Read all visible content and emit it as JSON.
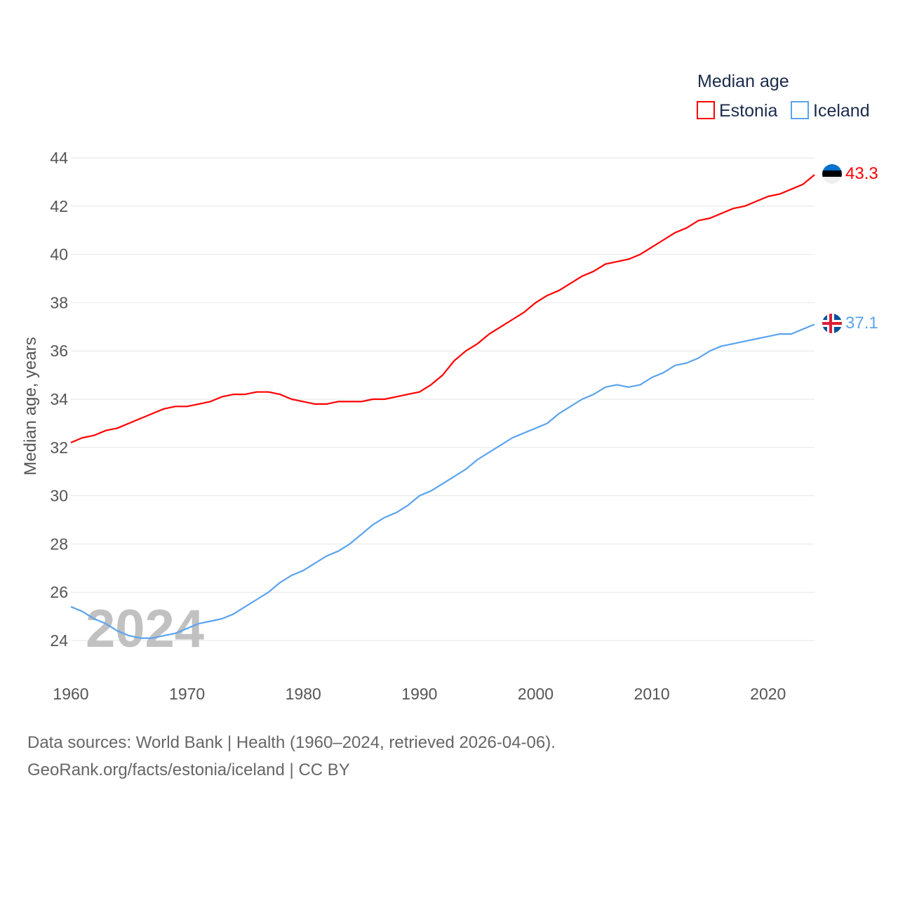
{
  "chart_data": {
    "type": "line",
    "title": "Median age",
    "ylabel": "Median age, years",
    "xlabel": "",
    "xlim": [
      1960,
      2024
    ],
    "ylim": [
      23,
      44
    ],
    "x_ticks": [
      "1960",
      "1970",
      "1980",
      "1990",
      "2000",
      "2010",
      "2020"
    ],
    "y_ticks": [
      "24",
      "26",
      "28",
      "30",
      "32",
      "34",
      "36",
      "38",
      "40",
      "42",
      "44"
    ],
    "grid": true,
    "legend_placement": "top-right",
    "year_label": "2024",
    "x": [
      1960,
      1961,
      1962,
      1963,
      1964,
      1965,
      1966,
      1967,
      1968,
      1969,
      1970,
      1971,
      1972,
      1973,
      1974,
      1975,
      1976,
      1977,
      1978,
      1979,
      1980,
      1981,
      1982,
      1983,
      1984,
      1985,
      1986,
      1987,
      1988,
      1989,
      1990,
      1991,
      1992,
      1993,
      1994,
      1995,
      1996,
      1997,
      1998,
      1999,
      2000,
      2001,
      2002,
      2003,
      2004,
      2005,
      2006,
      2007,
      2008,
      2009,
      2010,
      2011,
      2012,
      2013,
      2014,
      2015,
      2016,
      2017,
      2018,
      2019,
      2020,
      2021,
      2022,
      2023,
      2024
    ],
    "series": [
      {
        "name": "Estonia",
        "color": "#ff0000",
        "end_label": "43.3",
        "values": [
          32.2,
          32.4,
          32.5,
          32.7,
          32.8,
          33.0,
          33.2,
          33.4,
          33.6,
          33.7,
          33.7,
          33.8,
          33.9,
          34.1,
          34.2,
          34.2,
          34.3,
          34.3,
          34.2,
          34.0,
          33.9,
          33.8,
          33.8,
          33.9,
          33.9,
          33.9,
          34.0,
          34.0,
          34.1,
          34.2,
          34.3,
          34.6,
          35.0,
          35.6,
          36.0,
          36.3,
          36.7,
          37.0,
          37.3,
          37.6,
          38.0,
          38.3,
          38.5,
          38.8,
          39.1,
          39.3,
          39.6,
          39.7,
          39.8,
          40.0,
          40.3,
          40.6,
          40.9,
          41.1,
          41.4,
          41.5,
          41.7,
          41.9,
          42.0,
          42.2,
          42.4,
          42.5,
          42.7,
          42.9,
          43.3
        ]
      },
      {
        "name": "Iceland",
        "color": "#5ba4ee",
        "end_label": "37.1",
        "values": [
          25.4,
          25.2,
          24.9,
          24.7,
          24.4,
          24.2,
          24.1,
          24.1,
          24.2,
          24.3,
          24.5,
          24.7,
          24.8,
          24.9,
          25.1,
          25.4,
          25.7,
          26.0,
          26.4,
          26.7,
          26.9,
          27.2,
          27.5,
          27.7,
          28.0,
          28.4,
          28.8,
          29.1,
          29.3,
          29.6,
          30.0,
          30.2,
          30.5,
          30.8,
          31.1,
          31.5,
          31.8,
          32.1,
          32.4,
          32.6,
          32.8,
          33.0,
          33.4,
          33.7,
          34.0,
          34.2,
          34.5,
          34.6,
          34.5,
          34.6,
          34.9,
          35.1,
          35.4,
          35.5,
          35.7,
          36.0,
          36.2,
          36.3,
          36.4,
          36.5,
          36.6,
          36.7,
          36.7,
          36.9,
          37.1
        ]
      }
    ]
  },
  "footer": {
    "line1": "Data sources: World Bank | Health (1960–2024, retrieved 2026-04-06).",
    "line2": "GeoRank.org/facts/estonia/iceland | CC BY"
  }
}
